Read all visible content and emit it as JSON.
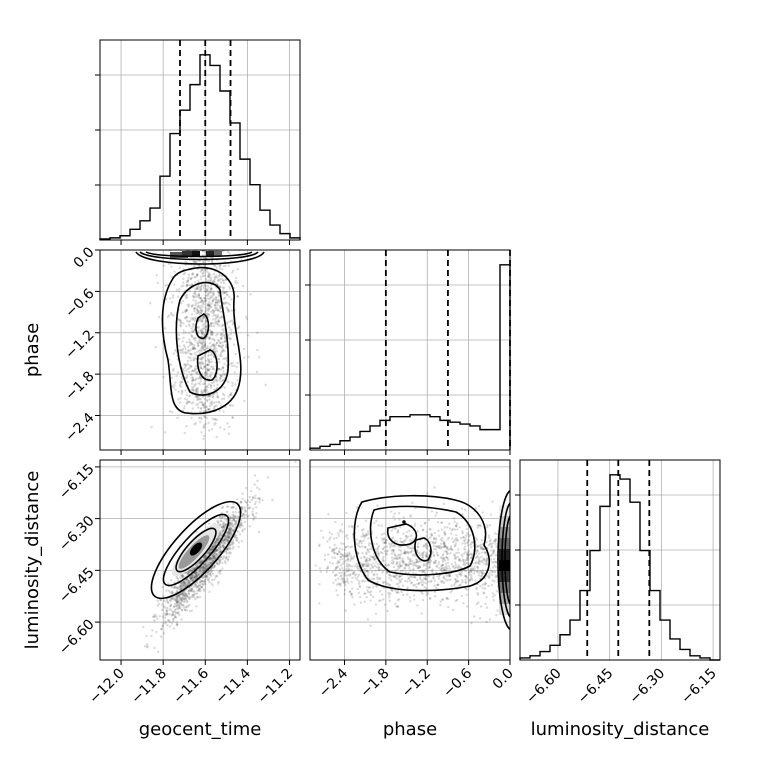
{
  "chart_data": {
    "type": "corner",
    "parameters": [
      "geocent_time",
      "phase",
      "luminosity_distance"
    ],
    "ranges": {
      "geocent_time": [
        -12.1,
        -11.15
      ],
      "phase": [
        -2.9,
        0.0
      ],
      "luminosity_distance": [
        -6.71,
        -6.13
      ]
    },
    "ticks": {
      "geocent_time": [
        "−12.0",
        "−11.8",
        "−11.6",
        "−11.4",
        "−11.2"
      ],
      "phase": [
        "−2.4",
        "−1.8",
        "−1.2",
        "−0.6",
        "0.0"
      ],
      "phase_axis": [
        "−2.4",
        "−1.8",
        "−1.2",
        "−0.6",
        "0.0"
      ],
      "luminosity_distance_y": [
        "−6.15",
        "−6.30",
        "−6.45",
        "−6.60"
      ],
      "luminosity_distance_x": [
        "−6.60",
        "−6.45",
        "−6.30",
        "−6.15"
      ]
    },
    "tick_values": {
      "geocent_time": [
        -12.0,
        -11.8,
        -11.6,
        -11.4,
        -11.2
      ],
      "phase": [
        -2.4,
        -1.8,
        -1.2,
        -0.6,
        0.0
      ],
      "luminosity_distance_y": [
        -6.15,
        -6.3,
        -6.45,
        -6.6
      ],
      "luminosity_distance_x": [
        -6.6,
        -6.45,
        -6.3,
        -6.15
      ]
    },
    "quantile_lines": {
      "geocent_time": [
        -11.72,
        -11.6,
        -11.48
      ],
      "phase": [
        -1.8,
        -0.9,
        0.0
      ],
      "luminosity_distance": [
        -6.515,
        -6.425,
        -6.335
      ]
    },
    "histograms": {
      "geocent_time": [
        0.5,
        1,
        2,
        5,
        9,
        15,
        30,
        50,
        61,
        73,
        87,
        82,
        70,
        55,
        38,
        26,
        14,
        7,
        3,
        1
      ],
      "phase": [
        1,
        2,
        3,
        5,
        7,
        10,
        13,
        16,
        18,
        18,
        19,
        19,
        18,
        16,
        15,
        14,
        13,
        11,
        11,
        100
      ],
      "luminosity_distance": [
        1,
        2,
        4,
        7,
        12,
        19,
        33,
        52,
        73,
        88,
        86,
        75,
        52,
        33,
        19,
        10,
        5,
        2,
        1,
        0
      ]
    },
    "grid": true
  }
}
